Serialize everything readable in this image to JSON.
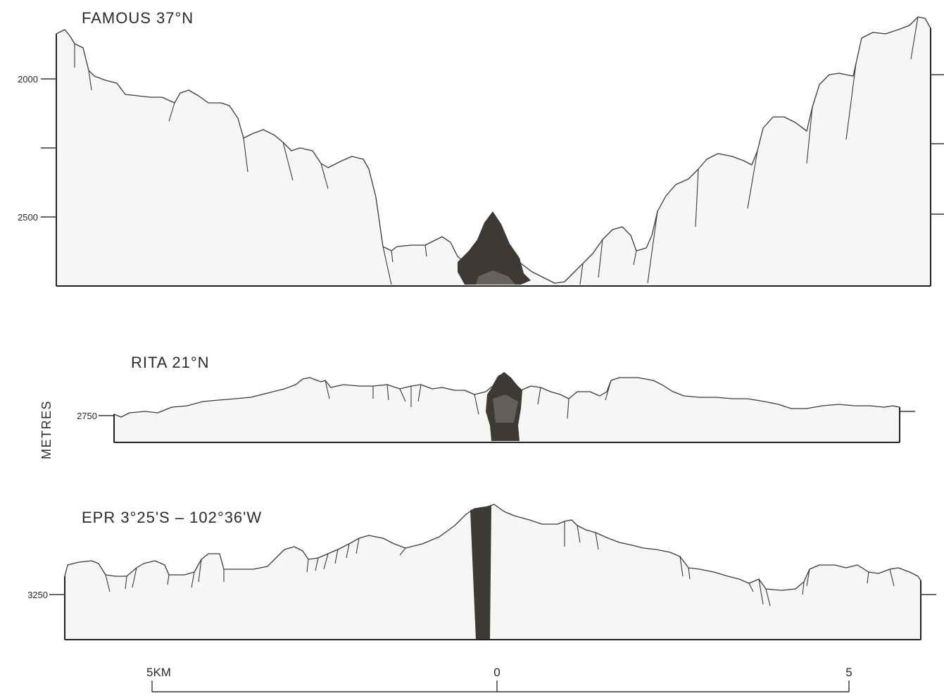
{
  "profiles": [
    {
      "title": "FAMOUS 37°N",
      "depth_tick": "2000",
      "depth_tick_2": "2500"
    },
    {
      "title": "RITA 21°N",
      "depth_tick": "2750"
    },
    {
      "title": "EPR 3°25'S – 102°36'W",
      "depth_tick": "3250"
    }
  ],
  "y_axis_label": "METRES",
  "scale_bar": {
    "left": "5KM",
    "center": "0",
    "right": "5"
  }
}
